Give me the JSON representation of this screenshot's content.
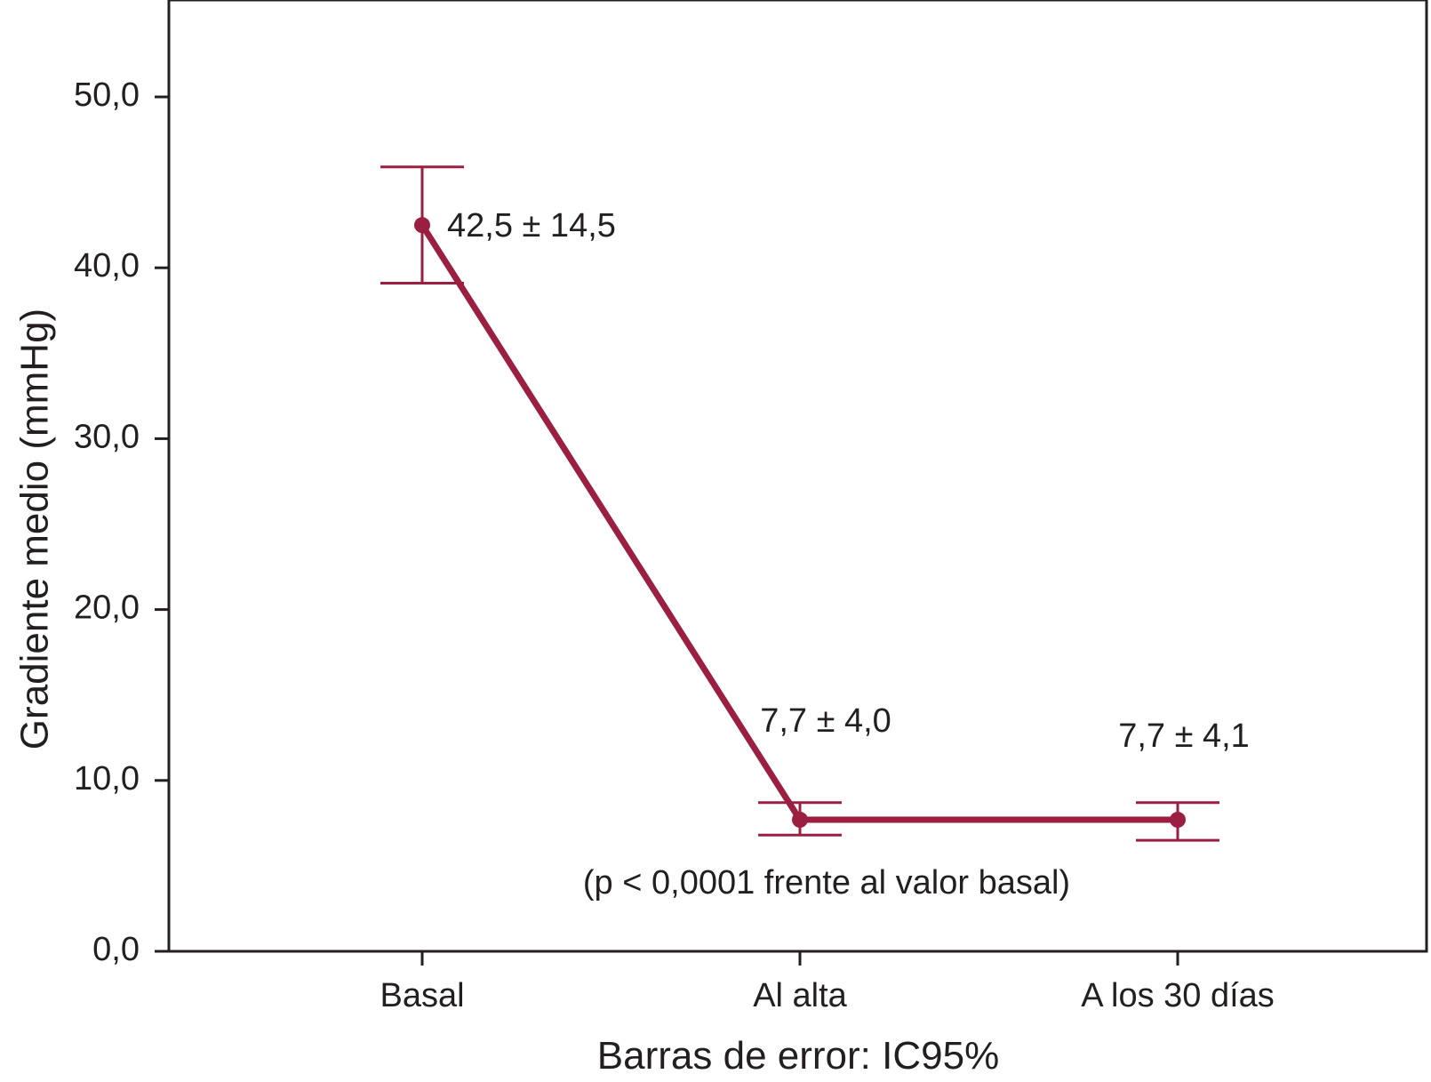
{
  "chart_data": {
    "type": "line",
    "categories": [
      "Basal",
      "Al alta",
      "A los 30 días"
    ],
    "series": [
      {
        "values": [
          42.5,
          7.7,
          7.7
        ],
        "ci_low": [
          39.1,
          6.8,
          6.5
        ],
        "ci_high": [
          45.9,
          8.7,
          8.7
        ],
        "labels": [
          "42,5 ± 14,5",
          "7,7 ± 4,0",
          "7,7 ± 4,1"
        ],
        "color": "#9a1f40"
      }
    ],
    "yticks": [
      "0,0",
      "10,0",
      "20,0",
      "30,0",
      "40,0",
      "50,0"
    ],
    "ytick_values": [
      0,
      10,
      20,
      30,
      40,
      50
    ],
    "ylim": [
      0,
      55
    ],
    "ylabel": "Gradiente medio (mmHg)",
    "xlabel": "Barras de error: IC95%",
    "annotation": "(p < 0,0001 frente al valor basal)",
    "grid": false,
    "legend": "none"
  }
}
